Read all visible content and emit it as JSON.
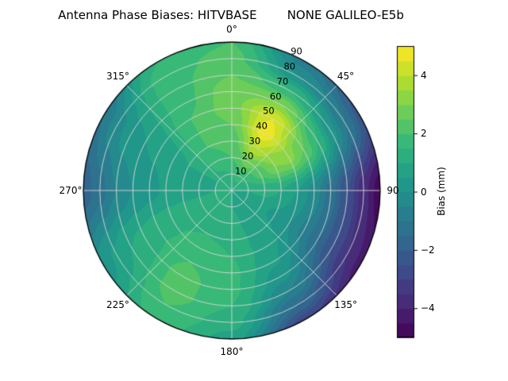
{
  "figure": {
    "title": "Antenna Phase Biases: HITVBASE        NONE GALILEO-E5b",
    "background": "#ffffff"
  },
  "polar_axes": {
    "azimuth_labels": [
      {
        "angle_deg": 0,
        "label": "0°"
      },
      {
        "angle_deg": 45,
        "label": "45°"
      },
      {
        "angle_deg": 90,
        "label": "90"
      },
      {
        "angle_deg": 135,
        "label": "135°"
      },
      {
        "angle_deg": 180,
        "label": "180°"
      },
      {
        "angle_deg": 225,
        "label": "225°"
      },
      {
        "angle_deg": 270,
        "label": "270°"
      },
      {
        "angle_deg": 315,
        "label": "315°"
      }
    ],
    "radial_tick_labels": [
      {
        "value": 10,
        "label": "10"
      },
      {
        "value": 20,
        "label": "20"
      },
      {
        "value": 30,
        "label": "30"
      },
      {
        "value": 40,
        "label": "40"
      },
      {
        "value": 50,
        "label": "50"
      },
      {
        "value": 60,
        "label": "60"
      },
      {
        "value": 70,
        "label": "70"
      },
      {
        "value": 80,
        "label": "80"
      },
      {
        "value": 90,
        "label": "90"
      }
    ],
    "radial_label_angle_deg": 25,
    "grid_color": "rgba(216,216,216,0.9)",
    "edge_color": "#000000"
  },
  "colorbar": {
    "label": "Bias (mm)",
    "vmin": -5,
    "vmax": 5,
    "ticks": [
      {
        "value": 4,
        "label": "4"
      },
      {
        "value": 2,
        "label": "2"
      },
      {
        "value": 0,
        "label": "0"
      },
      {
        "value": -2,
        "label": "−2"
      },
      {
        "value": -4,
        "label": "−4"
      }
    ]
  },
  "chart_data": {
    "type": "heatmap",
    "projection": "polar",
    "title": "Antenna Phase Biases: HITVBASE NONE GALILEO-E5b",
    "station": "HITVBASE",
    "antenna": "NONE",
    "signal": "GALILEO-E5b",
    "value_units": "mm",
    "colorbar_label": "Bias (mm)",
    "colormap": "viridis",
    "colormap_stops": [
      "#440154",
      "#482878",
      "#3e4989",
      "#31688e",
      "#26828e",
      "#1f9e89",
      "#35b779",
      "#6ece58",
      "#b5de2b",
      "#fde725"
    ],
    "clim": [
      -5,
      5
    ],
    "levels_step": 0.5,
    "azimuth_deg": [
      0,
      30,
      60,
      90,
      120,
      150,
      180,
      210,
      240,
      270,
      300,
      330
    ],
    "radius": [
      0,
      10,
      20,
      30,
      40,
      50,
      60,
      70,
      80,
      90
    ],
    "values_mm": [
      [
        1.0,
        1.5,
        2.0,
        2.2,
        2.5,
        2.8,
        2.8,
        2.5,
        2.2,
        2.0
      ],
      [
        1.0,
        1.8,
        2.8,
        4.0,
        4.8,
        4.5,
        3.0,
        1.5,
        0.0,
        -0.8
      ],
      [
        1.0,
        1.5,
        2.2,
        3.0,
        3.2,
        2.5,
        1.5,
        0.2,
        -1.0,
        -2.2
      ],
      [
        1.0,
        1.0,
        1.2,
        1.0,
        0.5,
        -0.2,
        -1.2,
        -2.5,
        -3.8,
        -4.8
      ],
      [
        1.0,
        0.8,
        0.6,
        0.4,
        0.0,
        -0.6,
        -1.5,
        -2.5,
        -3.5,
        -4.2
      ],
      [
        1.0,
        0.8,
        0.8,
        0.8,
        0.8,
        0.6,
        0.2,
        -0.5,
        -1.5,
        -2.8
      ],
      [
        1.0,
        1.0,
        1.2,
        1.4,
        1.5,
        1.6,
        1.6,
        1.5,
        1.2,
        0.8
      ],
      [
        1.0,
        1.2,
        1.4,
        1.5,
        1.8,
        2.0,
        2.2,
        2.2,
        2.0,
        1.8
      ],
      [
        1.0,
        1.2,
        1.2,
        1.3,
        1.4,
        1.4,
        1.2,
        1.0,
        0.6,
        0.2
      ],
      [
        1.0,
        1.0,
        0.9,
        0.8,
        0.6,
        0.3,
        0.0,
        -0.5,
        -1.2,
        -1.8
      ],
      [
        1.0,
        1.0,
        1.0,
        1.0,
        0.8,
        0.6,
        0.5,
        0.3,
        -0.2,
        -1.0
      ],
      [
        1.0,
        1.4,
        1.8,
        2.0,
        2.0,
        2.0,
        1.8,
        1.8,
        1.8,
        1.5
      ]
    ]
  }
}
